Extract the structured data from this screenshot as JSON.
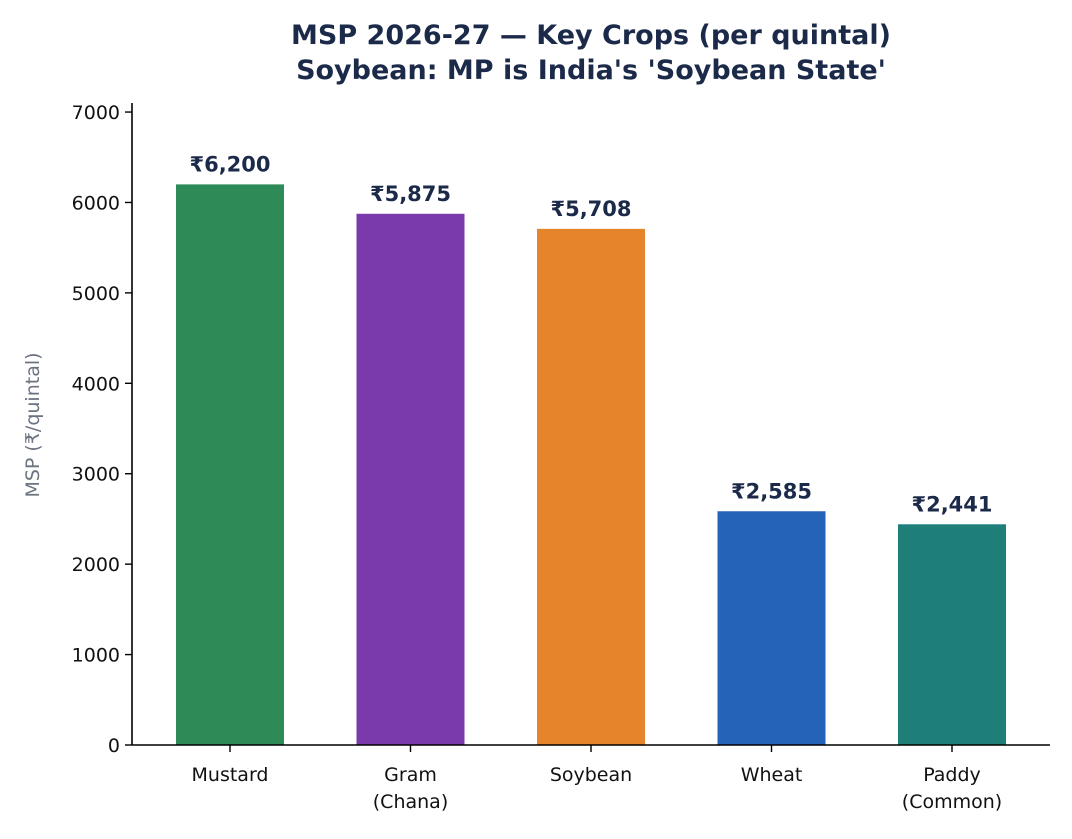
{
  "chart_data": {
    "type": "bar",
    "title": "MSP 2026-27 — Key Crops (per quintal)",
    "subtitle": "Soybean: MP is India's 'Soybean State'",
    "xlabel": "",
    "ylabel": "MSP (₹/quintal)",
    "ylim": [
      0,
      7100
    ],
    "yticks": [
      0,
      1000,
      2000,
      3000,
      4000,
      5000,
      6000,
      7000
    ],
    "ytick_labels": [
      "0",
      "1000",
      "2000",
      "3000",
      "4000",
      "5000",
      "6000",
      "7000"
    ],
    "categories": [
      [
        "Mustard"
      ],
      [
        "Gram",
        "(Chana)"
      ],
      [
        "Soybean"
      ],
      [
        "Wheat"
      ],
      [
        "Paddy",
        "(Common)"
      ]
    ],
    "values": [
      6200,
      5875,
      5708,
      2585,
      2441
    ],
    "data_labels": [
      "₹6,200",
      "₹5,875",
      "₹5,708",
      "₹2,585",
      "₹2,441"
    ],
    "colors": [
      "#2e8b57",
      "#7b3aab",
      "#e6842c",
      "#2563b8",
      "#1e7f79"
    ],
    "grid": false,
    "legend": "none"
  }
}
